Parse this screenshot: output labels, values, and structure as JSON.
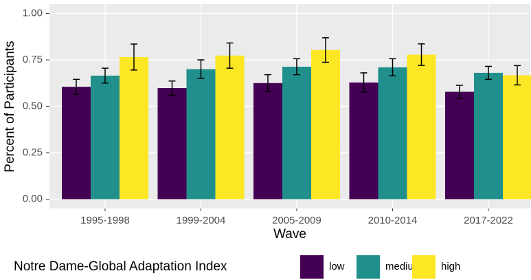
{
  "chart_data": {
    "type": "bar",
    "x_label": "Wave",
    "y_label": "Percent of Participants",
    "legend_title": "Notre Dame-Global Adaptation Index",
    "legend_position": "bottom",
    "categories": [
      "1995-1998",
      "1999-2004",
      "2005-2009",
      "2010-2014",
      "2017-2022"
    ],
    "series": [
      {
        "name": "low",
        "color": "#440154",
        "values": [
          0.605,
          0.598,
          0.625,
          0.628,
          0.578
        ],
        "errors": [
          0.04,
          0.038,
          0.045,
          0.052,
          0.035
        ]
      },
      {
        "name": "medium",
        "color": "#21908c",
        "values": [
          0.665,
          0.7,
          0.713,
          0.71,
          0.68
        ],
        "errors": [
          0.04,
          0.05,
          0.043,
          0.046,
          0.035
        ]
      },
      {
        "name": "high",
        "color": "#fde725",
        "values": [
          0.765,
          0.773,
          0.803,
          0.778,
          0.667
        ],
        "errors": [
          0.07,
          0.068,
          0.066,
          0.058,
          0.052
        ]
      }
    ],
    "ylim": [
      -0.05,
      1.05
    ],
    "yticks": [
      {
        "value": 0,
        "label": "0.00"
      },
      {
        "value": 0.25,
        "label": "0.25"
      },
      {
        "value": 0.5,
        "label": "0.50"
      },
      {
        "value": 0.75,
        "label": "0.75"
      },
      {
        "value": 1,
        "label": "1.00"
      }
    ],
    "grid": true
  }
}
